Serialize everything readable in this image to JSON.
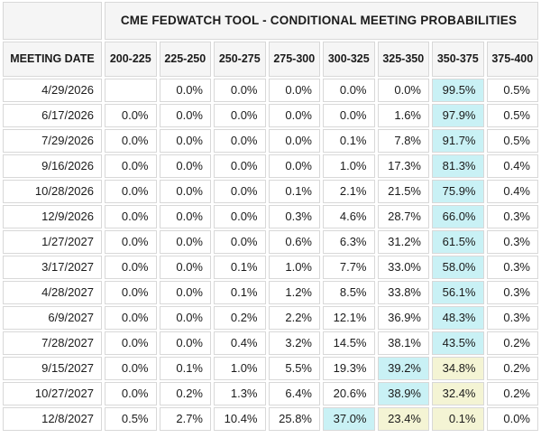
{
  "table": {
    "title": "CME FEDWATCH TOOL - CONDITIONAL MEETING PROBABILITIES",
    "date_column_header": "MEETING DATE",
    "range_headers": [
      "200-225",
      "225-250",
      "250-275",
      "275-300",
      "300-325",
      "325-350",
      "350-375",
      "375-400"
    ],
    "rows": [
      {
        "date": "4/29/2026",
        "values": [
          "",
          "0.0%",
          "0.0%",
          "0.0%",
          "0.0%",
          "0.0%",
          "99.5%",
          "0.5%"
        ],
        "hl": {
          "6": "cyan"
        }
      },
      {
        "date": "6/17/2026",
        "values": [
          "0.0%",
          "0.0%",
          "0.0%",
          "0.0%",
          "0.0%",
          "1.6%",
          "97.9%",
          "0.5%"
        ],
        "hl": {
          "6": "cyan"
        }
      },
      {
        "date": "7/29/2026",
        "values": [
          "0.0%",
          "0.0%",
          "0.0%",
          "0.0%",
          "0.1%",
          "7.8%",
          "91.7%",
          "0.5%"
        ],
        "hl": {
          "6": "cyan"
        }
      },
      {
        "date": "9/16/2026",
        "values": [
          "0.0%",
          "0.0%",
          "0.0%",
          "0.0%",
          "1.0%",
          "17.3%",
          "81.3%",
          "0.4%"
        ],
        "hl": {
          "6": "cyan"
        }
      },
      {
        "date": "10/28/2026",
        "values": [
          "0.0%",
          "0.0%",
          "0.0%",
          "0.1%",
          "2.1%",
          "21.5%",
          "75.9%",
          "0.4%"
        ],
        "hl": {
          "6": "cyan"
        }
      },
      {
        "date": "12/9/2026",
        "values": [
          "0.0%",
          "0.0%",
          "0.0%",
          "0.3%",
          "4.6%",
          "28.7%",
          "66.0%",
          "0.3%"
        ],
        "hl": {
          "6": "cyan"
        }
      },
      {
        "date": "1/27/2027",
        "values": [
          "0.0%",
          "0.0%",
          "0.0%",
          "0.6%",
          "6.3%",
          "31.2%",
          "61.5%",
          "0.3%"
        ],
        "hl": {
          "6": "cyan"
        }
      },
      {
        "date": "3/17/2027",
        "values": [
          "0.0%",
          "0.0%",
          "0.1%",
          "1.0%",
          "7.7%",
          "33.0%",
          "58.0%",
          "0.3%"
        ],
        "hl": {
          "6": "cyan"
        }
      },
      {
        "date": "4/28/2027",
        "values": [
          "0.0%",
          "0.0%",
          "0.1%",
          "1.2%",
          "8.5%",
          "33.8%",
          "56.1%",
          "0.3%"
        ],
        "hl": {
          "6": "cyan"
        }
      },
      {
        "date": "6/9/2027",
        "values": [
          "0.0%",
          "0.0%",
          "0.2%",
          "2.2%",
          "12.1%",
          "36.9%",
          "48.3%",
          "0.3%"
        ],
        "hl": {
          "6": "cyan"
        }
      },
      {
        "date": "7/28/2027",
        "values": [
          "0.0%",
          "0.0%",
          "0.4%",
          "3.2%",
          "14.5%",
          "38.1%",
          "43.5%",
          "0.2%"
        ],
        "hl": {
          "6": "cyan"
        }
      },
      {
        "date": "9/15/2027",
        "values": [
          "0.0%",
          "0.1%",
          "1.0%",
          "5.5%",
          "19.3%",
          "39.2%",
          "34.8%",
          "0.2%"
        ],
        "hl": {
          "5": "cyan",
          "6": "yellow"
        }
      },
      {
        "date": "10/27/2027",
        "values": [
          "0.0%",
          "0.2%",
          "1.3%",
          "6.4%",
          "20.6%",
          "38.9%",
          "32.4%",
          "0.2%"
        ],
        "hl": {
          "5": "cyan",
          "6": "yellow"
        }
      },
      {
        "date": "12/8/2027",
        "values": [
          "0.5%",
          "2.7%",
          "10.4%",
          "25.8%",
          "37.0%",
          "23.4%",
          "0.1%",
          "0.0%"
        ],
        "hl": {
          "4": "cyan",
          "5": "yellow",
          "6": "yellow"
        }
      }
    ]
  },
  "colors": {
    "highlight_cyan": "#c9f1f5",
    "highlight_yellow": "#f4f4d4",
    "header_bg": "#f5f5f5",
    "cell_border": "#d8d8d8",
    "text": "#1b1b1b"
  }
}
